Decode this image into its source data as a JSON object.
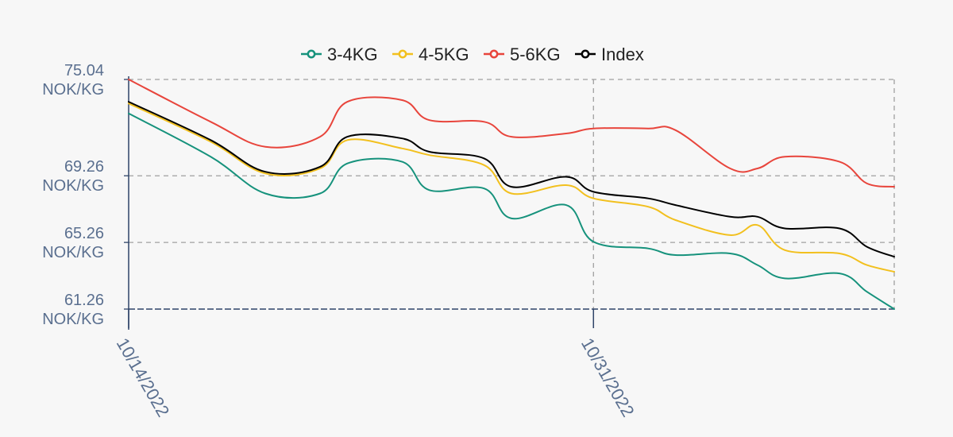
{
  "chart_data": {
    "type": "line",
    "x_start": "2022-10-14",
    "x_end": "2022-11-11",
    "xticks": [
      {
        "date": "2022-10-14",
        "label": "10/14/2022"
      },
      {
        "date": "2022-10-31",
        "label": "10/31/2022"
      }
    ],
    "yticks": [
      {
        "value": 75.04,
        "label": [
          "75.04",
          "NOK/KG"
        ]
      },
      {
        "value": 69.26,
        "label": [
          "69.26",
          "NOK/KG"
        ]
      },
      {
        "value": 65.26,
        "label": [
          "65.26",
          "NOK/KG"
        ]
      },
      {
        "value": 61.26,
        "label": [
          "61.26",
          "NOK/KG"
        ]
      }
    ],
    "ylim": [
      61.26,
      75.04
    ],
    "grid": true,
    "legend_position": "top",
    "series": [
      {
        "name": "3-4KG",
        "color": "#16927c",
        "points": [
          [
            "2022-10-14",
            73.0
          ],
          [
            "2022-10-17",
            70.4
          ],
          [
            "2022-10-19",
            68.2
          ],
          [
            "2022-10-21",
            68.2
          ],
          [
            "2022-10-22",
            70.0
          ],
          [
            "2022-10-24",
            70.1
          ],
          [
            "2022-10-25",
            68.4
          ],
          [
            "2022-10-27",
            68.5
          ],
          [
            "2022-10-28",
            66.7
          ],
          [
            "2022-10-30",
            67.5
          ],
          [
            "2022-10-31",
            65.3
          ],
          [
            "2022-11-02",
            64.9
          ],
          [
            "2022-11-03",
            64.5
          ],
          [
            "2022-11-05",
            64.6
          ],
          [
            "2022-11-06",
            63.9
          ],
          [
            "2022-11-07",
            63.1
          ],
          [
            "2022-11-09",
            63.4
          ],
          [
            "2022-11-10",
            62.3
          ],
          [
            "2022-11-11",
            61.26
          ]
        ]
      },
      {
        "name": "4-5KG",
        "color": "#f2c01e",
        "points": [
          [
            "2022-10-14",
            73.6
          ],
          [
            "2022-10-17",
            71.3
          ],
          [
            "2022-10-19",
            69.4
          ],
          [
            "2022-10-21",
            69.7
          ],
          [
            "2022-10-22",
            71.4
          ],
          [
            "2022-10-24",
            70.9
          ],
          [
            "2022-10-25",
            70.5
          ],
          [
            "2022-10-27",
            69.9
          ],
          [
            "2022-10-28",
            68.2
          ],
          [
            "2022-10-30",
            68.7
          ],
          [
            "2022-10-31",
            67.9
          ],
          [
            "2022-11-02",
            67.4
          ],
          [
            "2022-11-03",
            66.6
          ],
          [
            "2022-11-05",
            65.7
          ],
          [
            "2022-11-06",
            66.3
          ],
          [
            "2022-11-07",
            64.8
          ],
          [
            "2022-11-09",
            64.6
          ],
          [
            "2022-11-10",
            63.9
          ],
          [
            "2022-11-11",
            63.5
          ]
        ]
      },
      {
        "name": "5-6KG",
        "color": "#e8453c",
        "points": [
          [
            "2022-10-14",
            75.04
          ],
          [
            "2022-10-17",
            72.5
          ],
          [
            "2022-10-19",
            71.0
          ],
          [
            "2022-10-21",
            71.6
          ],
          [
            "2022-10-22",
            73.7
          ],
          [
            "2022-10-24",
            73.8
          ],
          [
            "2022-10-25",
            72.6
          ],
          [
            "2022-10-27",
            72.5
          ],
          [
            "2022-10-28",
            71.6
          ],
          [
            "2022-10-30",
            71.8
          ],
          [
            "2022-10-31",
            72.1
          ],
          [
            "2022-11-02",
            72.1
          ],
          [
            "2022-11-03",
            72.0
          ],
          [
            "2022-11-05",
            69.7
          ],
          [
            "2022-11-06",
            69.7
          ],
          [
            "2022-11-07",
            70.4
          ],
          [
            "2022-11-09",
            70.1
          ],
          [
            "2022-11-10",
            68.8
          ],
          [
            "2022-11-11",
            68.6
          ]
        ]
      },
      {
        "name": "Index",
        "color": "#000000",
        "points": [
          [
            "2022-10-14",
            73.7
          ],
          [
            "2022-10-17",
            71.4
          ],
          [
            "2022-10-19",
            69.5
          ],
          [
            "2022-10-21",
            69.8
          ],
          [
            "2022-10-22",
            71.6
          ],
          [
            "2022-10-24",
            71.5
          ],
          [
            "2022-10-25",
            70.7
          ],
          [
            "2022-10-27",
            70.3
          ],
          [
            "2022-10-28",
            68.6
          ],
          [
            "2022-10-30",
            69.2
          ],
          [
            "2022-10-31",
            68.3
          ],
          [
            "2022-11-02",
            67.9
          ],
          [
            "2022-11-03",
            67.5
          ],
          [
            "2022-11-05",
            66.8
          ],
          [
            "2022-11-06",
            66.8
          ],
          [
            "2022-11-07",
            66.1
          ],
          [
            "2022-11-09",
            66.1
          ],
          [
            "2022-11-10",
            65.0
          ],
          [
            "2022-11-11",
            64.4
          ]
        ]
      }
    ]
  }
}
